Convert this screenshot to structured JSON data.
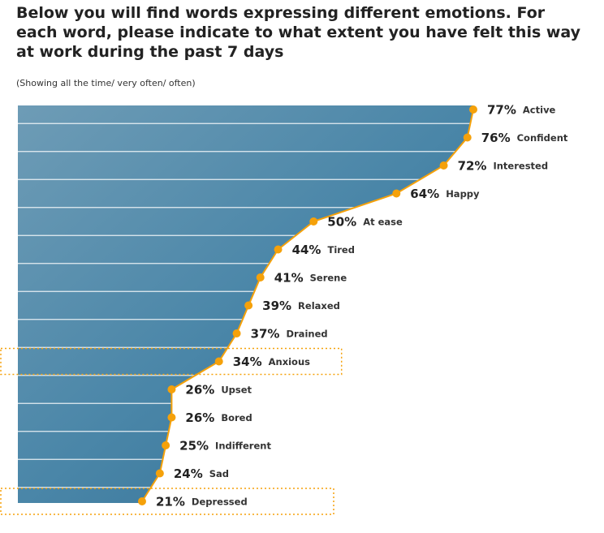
{
  "chart_data": {
    "type": "line",
    "title": "Below you will find words expressing different emotions. For each word, please indicate to what extent you have felt this way at work during the past 7 days",
    "subtitle": "(Showing all the time/ very often/ often)",
    "categories": [
      "Active",
      "Confident",
      "Interested",
      "Happy",
      "At ease",
      "Tired",
      "Serene",
      "Relaxed",
      "Drained",
      "Anxious",
      "Upset",
      "Bored",
      "Indifferent",
      "Sad",
      "Depressed"
    ],
    "values": [
      77,
      76,
      72,
      64,
      50,
      44,
      41,
      39,
      37,
      34,
      26,
      26,
      25,
      24,
      21
    ],
    "value_labels": [
      "77%",
      "76%",
      "72%",
      "64%",
      "50%",
      "44%",
      "41%",
      "39%",
      "37%",
      "34%",
      "26%",
      "26%",
      "25%",
      "24%",
      "21%"
    ],
    "xlim": [
      0,
      77
    ],
    "color": "#f5a10a",
    "area_color": "#3f7fa3",
    "highlighted": [
      "Anxious",
      "Depressed"
    ]
  }
}
